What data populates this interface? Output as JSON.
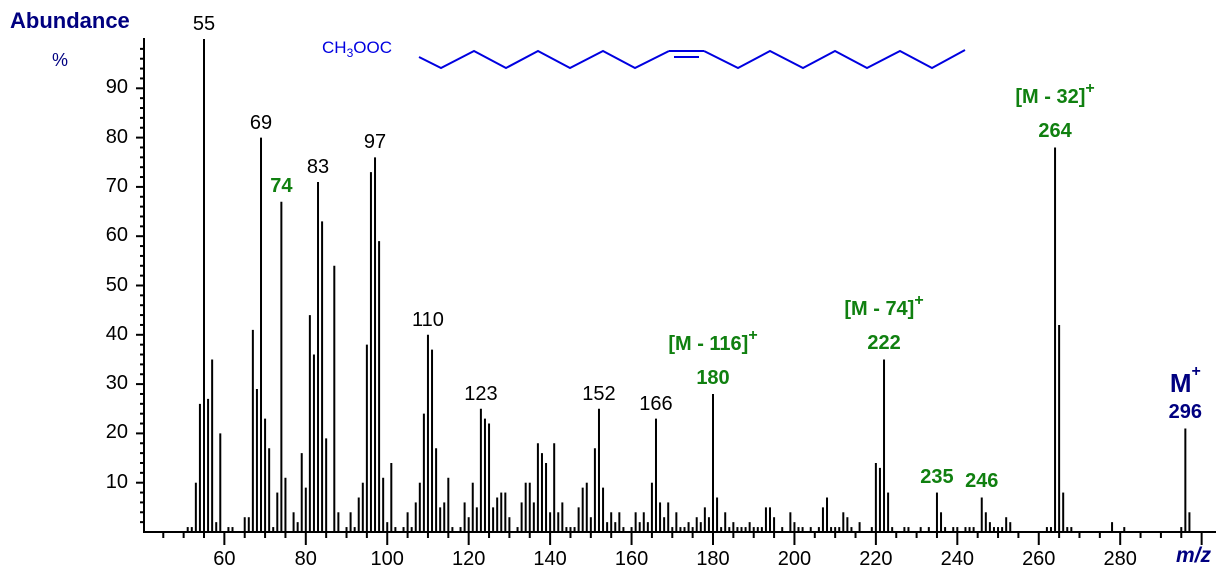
{
  "chart_data": {
    "type": "bar",
    "title": "",
    "ylabel": "Abundance",
    "ylabel_unit": "%",
    "xlabel": "m/z",
    "xlim": [
      40,
      300
    ],
    "ylim": [
      0,
      100
    ],
    "grid": false,
    "x_ticks": [
      60,
      80,
      100,
      120,
      140,
      160,
      180,
      200,
      220,
      240,
      260,
      280
    ],
    "y_ticks": [
      10,
      20,
      30,
      40,
      50,
      60,
      70,
      80,
      90
    ],
    "structure_label": "CH3OOC",
    "peaks": [
      [
        51,
        1
      ],
      [
        52,
        1
      ],
      [
        53,
        10
      ],
      [
        54,
        26
      ],
      [
        55,
        100
      ],
      [
        56,
        27
      ],
      [
        57,
        35
      ],
      [
        58,
        2
      ],
      [
        59,
        20
      ],
      [
        61,
        1
      ],
      [
        62,
        1
      ],
      [
        65,
        3
      ],
      [
        66,
        3
      ],
      [
        67,
        41
      ],
      [
        68,
        29
      ],
      [
        69,
        80
      ],
      [
        70,
        23
      ],
      [
        71,
        17
      ],
      [
        72,
        1
      ],
      [
        73,
        8
      ],
      [
        74,
        67
      ],
      [
        75,
        11
      ],
      [
        77,
        4
      ],
      [
        78,
        2
      ],
      [
        79,
        16
      ],
      [
        80,
        9
      ],
      [
        81,
        44
      ],
      [
        82,
        36
      ],
      [
        83,
        71
      ],
      [
        84,
        63
      ],
      [
        85,
        19
      ],
      [
        87,
        54
      ],
      [
        88,
        4
      ],
      [
        90,
        1
      ],
      [
        91,
        4
      ],
      [
        92,
        1
      ],
      [
        93,
        7
      ],
      [
        94,
        10
      ],
      [
        95,
        38
      ],
      [
        96,
        73
      ],
      [
        97,
        76
      ],
      [
        98,
        59
      ],
      [
        99,
        11
      ],
      [
        100,
        2
      ],
      [
        101,
        14
      ],
      [
        102,
        1
      ],
      [
        104,
        1
      ],
      [
        105,
        4
      ],
      [
        106,
        1
      ],
      [
        107,
        6
      ],
      [
        108,
        10
      ],
      [
        109,
        24
      ],
      [
        110,
        40
      ],
      [
        111,
        37
      ],
      [
        112,
        17
      ],
      [
        113,
        5
      ],
      [
        114,
        6
      ],
      [
        115,
        11
      ],
      [
        116,
        1
      ],
      [
        118,
        1
      ],
      [
        119,
        6
      ],
      [
        120,
        3
      ],
      [
        121,
        10
      ],
      [
        122,
        5
      ],
      [
        123,
        25
      ],
      [
        124,
        23
      ],
      [
        125,
        22
      ],
      [
        126,
        5
      ],
      [
        127,
        7
      ],
      [
        128,
        8
      ],
      [
        129,
        8
      ],
      [
        130,
        3
      ],
      [
        132,
        1
      ],
      [
        133,
        6
      ],
      [
        134,
        10
      ],
      [
        135,
        10
      ],
      [
        136,
        6
      ],
      [
        137,
        18
      ],
      [
        138,
        16
      ],
      [
        139,
        14
      ],
      [
        140,
        4
      ],
      [
        141,
        18
      ],
      [
        142,
        4
      ],
      [
        143,
        6
      ],
      [
        144,
        1
      ],
      [
        145,
        1
      ],
      [
        146,
        1
      ],
      [
        147,
        5
      ],
      [
        148,
        9
      ],
      [
        149,
        10
      ],
      [
        150,
        3
      ],
      [
        151,
        17
      ],
      [
        152,
        25
      ],
      [
        153,
        9
      ],
      [
        154,
        2
      ],
      [
        155,
        4
      ],
      [
        156,
        2
      ],
      [
        157,
        4
      ],
      [
        158,
        1
      ],
      [
        160,
        1
      ],
      [
        161,
        4
      ],
      [
        162,
        2
      ],
      [
        163,
        4
      ],
      [
        164,
        2
      ],
      [
        165,
        10
      ],
      [
        166,
        23
      ],
      [
        167,
        6
      ],
      [
        168,
        3
      ],
      [
        169,
        6
      ],
      [
        170,
        1
      ],
      [
        171,
        4
      ],
      [
        172,
        1
      ],
      [
        173,
        1
      ],
      [
        174,
        2
      ],
      [
        175,
        1
      ],
      [
        176,
        3
      ],
      [
        177,
        2
      ],
      [
        178,
        5
      ],
      [
        179,
        3
      ],
      [
        180,
        28
      ],
      [
        181,
        7
      ],
      [
        182,
        1
      ],
      [
        183,
        4
      ],
      [
        184,
        1
      ],
      [
        185,
        2
      ],
      [
        186,
        1
      ],
      [
        187,
        1
      ],
      [
        188,
        1
      ],
      [
        189,
        2
      ],
      [
        190,
        1
      ],
      [
        191,
        1
      ],
      [
        192,
        1
      ],
      [
        193,
        5
      ],
      [
        194,
        5
      ],
      [
        195,
        3
      ],
      [
        197,
        1
      ],
      [
        199,
        4
      ],
      [
        200,
        2
      ],
      [
        201,
        1
      ],
      [
        202,
        1
      ],
      [
        204,
        1
      ],
      [
        206,
        1
      ],
      [
        207,
        5
      ],
      [
        208,
        7
      ],
      [
        209,
        1
      ],
      [
        210,
        1
      ],
      [
        211,
        1
      ],
      [
        212,
        4
      ],
      [
        213,
        3
      ],
      [
        214,
        1
      ],
      [
        216,
        2
      ],
      [
        219,
        1
      ],
      [
        220,
        14
      ],
      [
        221,
        13
      ],
      [
        222,
        35
      ],
      [
        223,
        8
      ],
      [
        224,
        1
      ],
      [
        227,
        1
      ],
      [
        228,
        1
      ],
      [
        231,
        1
      ],
      [
        233,
        1
      ],
      [
        235,
        8
      ],
      [
        236,
        4
      ],
      [
        237,
        1
      ],
      [
        239,
        1
      ],
      [
        240,
        1
      ],
      [
        242,
        1
      ],
      [
        243,
        1
      ],
      [
        244,
        1
      ],
      [
        246,
        7
      ],
      [
        247,
        4
      ],
      [
        248,
        2
      ],
      [
        249,
        1
      ],
      [
        250,
        1
      ],
      [
        251,
        1
      ],
      [
        252,
        3
      ],
      [
        253,
        2
      ],
      [
        262,
        1
      ],
      [
        263,
        1
      ],
      [
        264,
        78
      ],
      [
        265,
        42
      ],
      [
        266,
        8
      ],
      [
        267,
        1
      ],
      [
        268,
        1
      ],
      [
        278,
        2
      ],
      [
        281,
        1
      ],
      [
        296,
        21
      ],
      [
        297,
        4
      ],
      [
        295,
        1
      ]
    ],
    "annotations": [
      {
        "mz": 55,
        "text": "55",
        "style": "plain"
      },
      {
        "mz": 69,
        "text": "69",
        "style": "plain"
      },
      {
        "mz": 74,
        "text": "74",
        "style": "green"
      },
      {
        "mz": 83,
        "text": "83",
        "style": "plain"
      },
      {
        "mz": 97,
        "text": "97",
        "style": "plain"
      },
      {
        "mz": 110,
        "text": "110",
        "style": "plain"
      },
      {
        "mz": 123,
        "text": "123",
        "style": "plain"
      },
      {
        "mz": 152,
        "text": "152",
        "style": "plain"
      },
      {
        "mz": 166,
        "text": "166",
        "style": "plain"
      },
      {
        "mz": 180,
        "text": "180",
        "style": "green",
        "ion": "[M - 116]",
        "charge": "+"
      },
      {
        "mz": 222,
        "text": "222",
        "style": "green",
        "ion": "[M - 74]",
        "charge": "+"
      },
      {
        "mz": 235,
        "text": "235",
        "style": "green"
      },
      {
        "mz": 246,
        "text": "246",
        "style": "green"
      },
      {
        "mz": 264,
        "text": "264",
        "style": "green",
        "ion": "[M - 32]",
        "charge": "+"
      },
      {
        "mz": 296,
        "text": "296",
        "style": "molecular",
        "ion": "M",
        "charge": "+"
      }
    ],
    "colors": {
      "bars": "#000000",
      "green_labels": "#108010",
      "molecular_ion": "#000080",
      "axis_title": "#000080",
      "structure": "#0000e0"
    }
  },
  "labels": {
    "y_title": "Abundance",
    "y_unit": "%",
    "x_title": "m/z",
    "structure_prefix": "CH",
    "structure_sub": "3",
    "structure_suffix": "OOC"
  }
}
